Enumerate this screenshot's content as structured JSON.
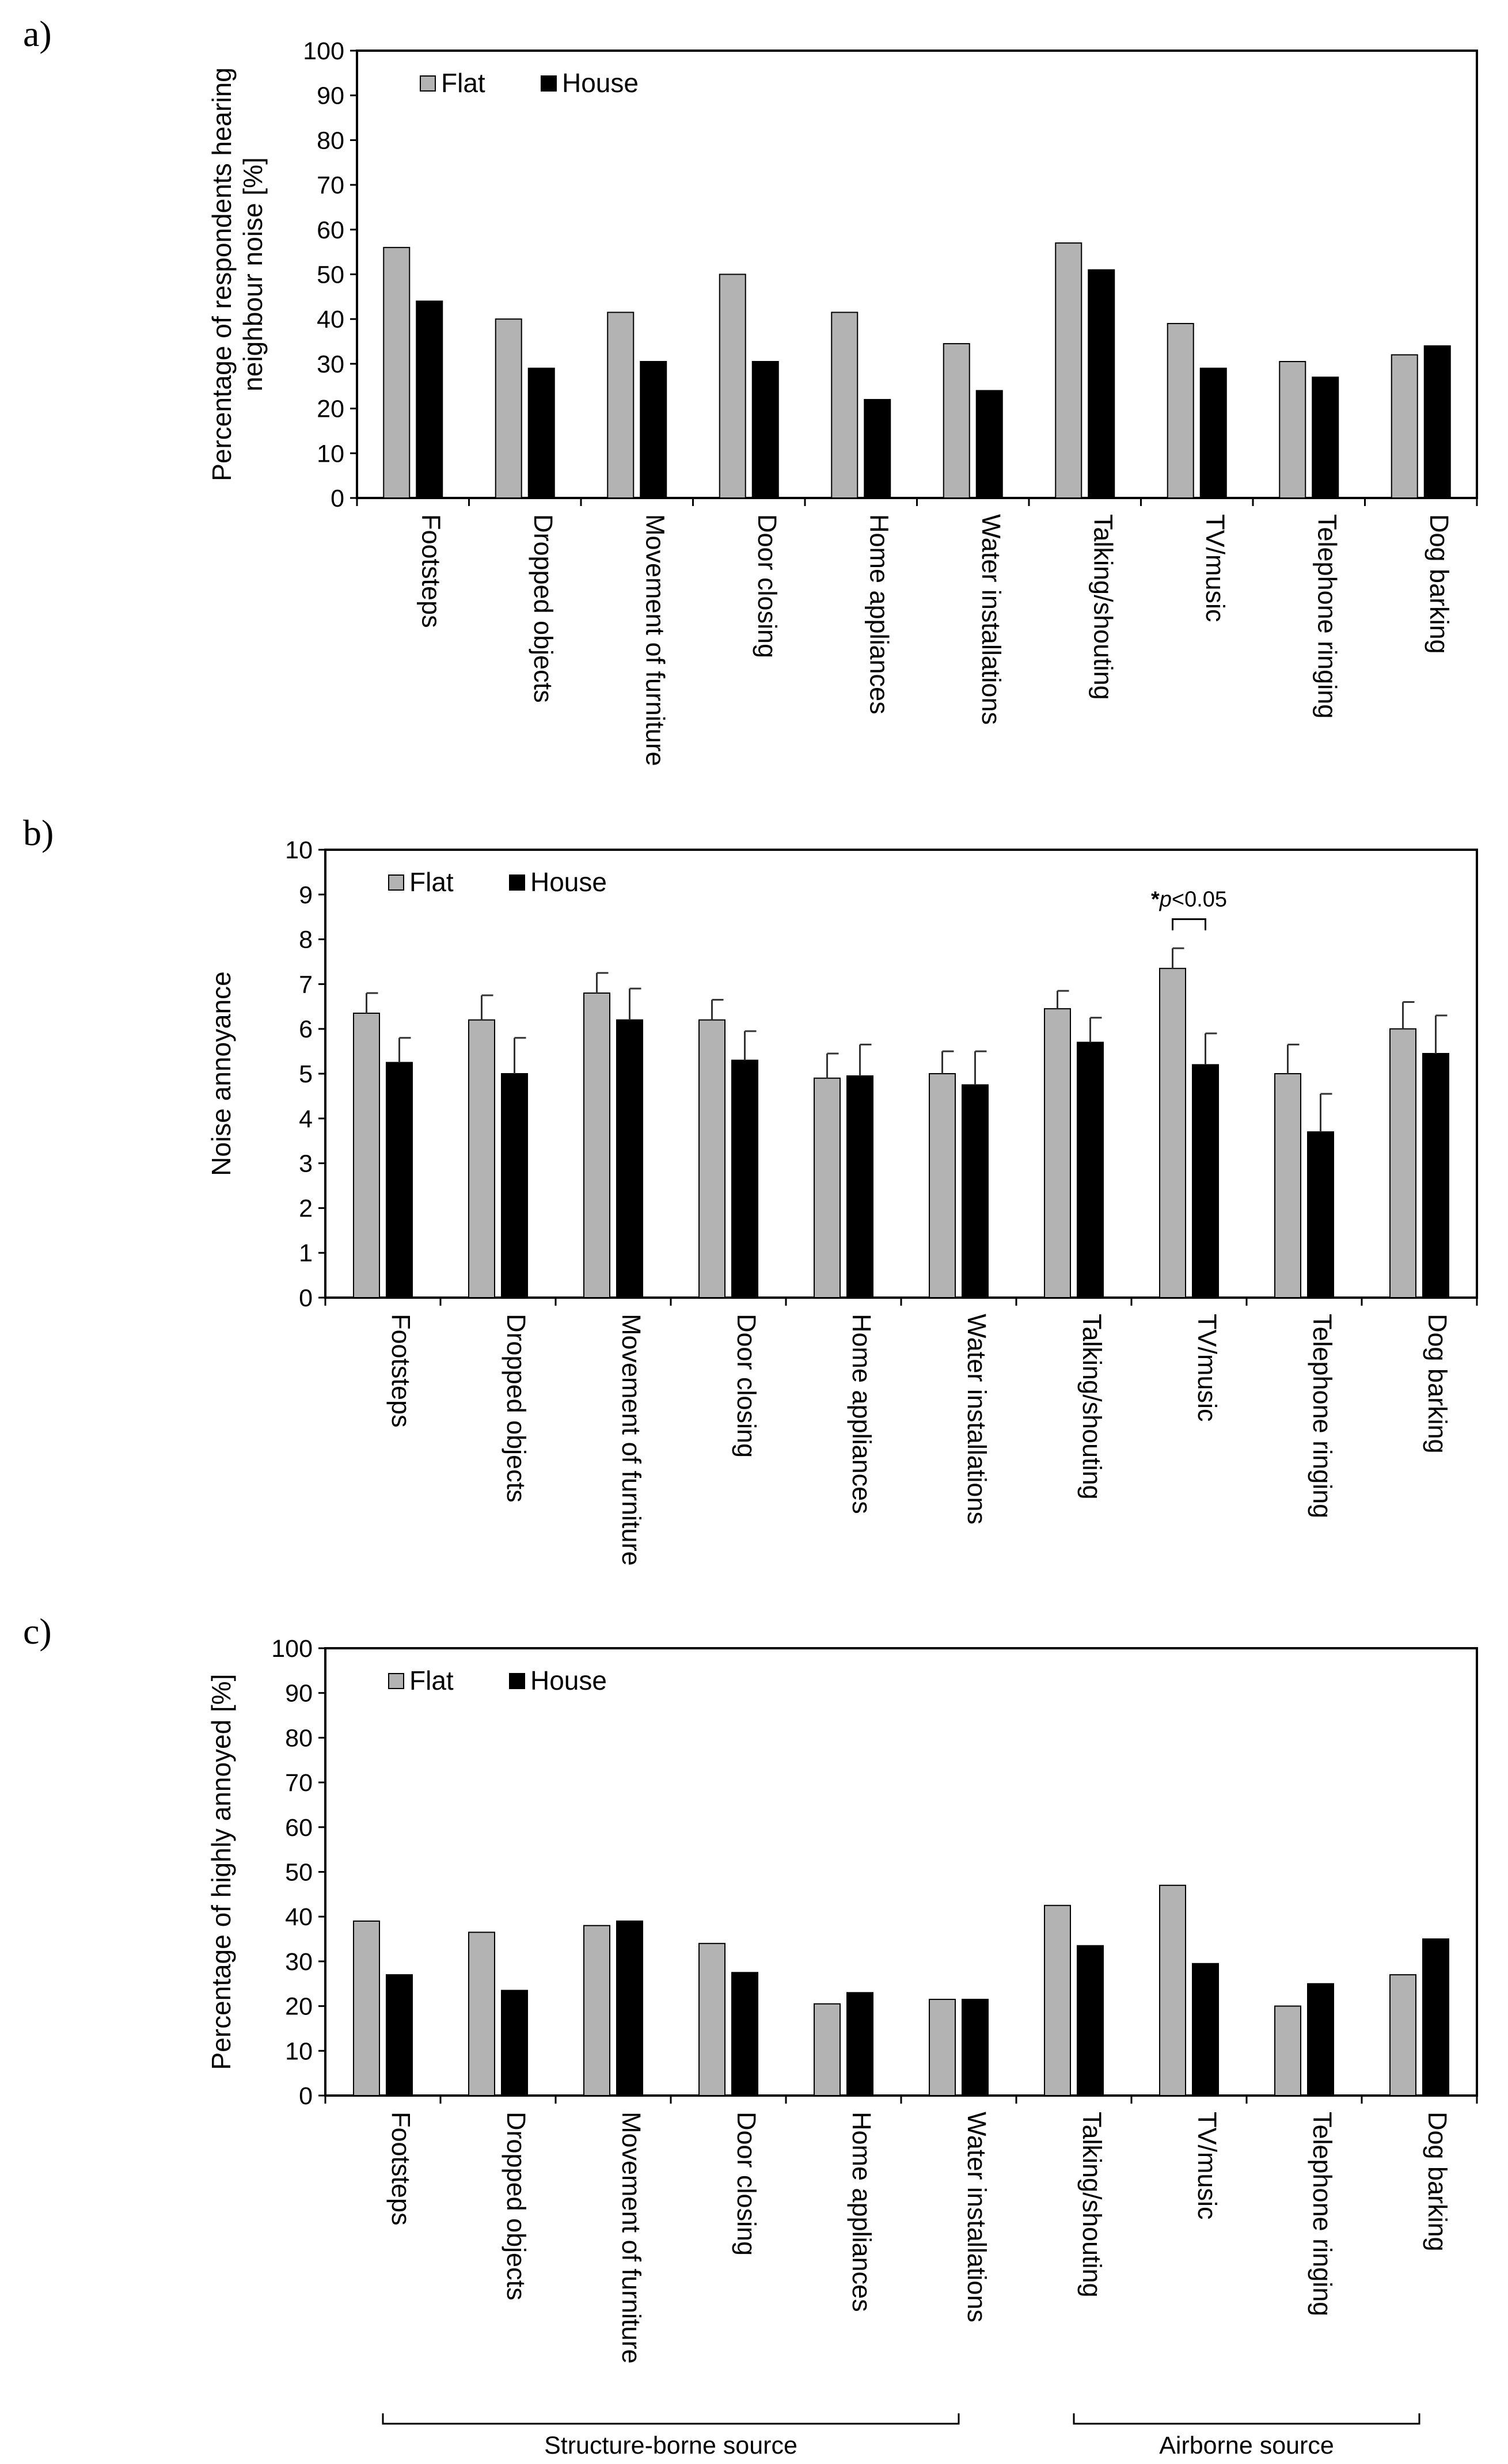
{
  "panels": [
    {
      "label": "a)",
      "ylabel_lines": [
        "Percentage of respondents hearing",
        "neighbour noise [%]"
      ],
      "chart_data": {
        "type": "bar",
        "categories": [
          "Footsteps",
          "Dropped objects",
          "Movement of furniture",
          "Door closing",
          "Home appliances",
          "Water installations",
          "Talking/shouting",
          "TV/music",
          "Telephone ringing",
          "Dog barking"
        ],
        "series": [
          {
            "name": "Flat",
            "color": "#b3b3b3",
            "values": [
              56,
              40,
              41.5,
              50,
              41.5,
              34.5,
              57,
              39,
              30.5,
              32
            ]
          },
          {
            "name": "House",
            "color": "#000000",
            "values": [
              44,
              29,
              30.5,
              30.5,
              22,
              24,
              51,
              29,
              27,
              34
            ]
          }
        ],
        "ylim": [
          0,
          100
        ],
        "yticks": [
          "0",
          "10",
          "20",
          "30",
          "40",
          "50",
          "60",
          "70",
          "80",
          "90",
          "100"
        ],
        "legend": "top-left",
        "grid": false
      }
    },
    {
      "label": "b)",
      "ylabel_lines": [
        "Noise annoyance"
      ],
      "chart_data": {
        "type": "bar",
        "categories": [
          "Footsteps",
          "Dropped objects",
          "Movement of furniture",
          "Door closing",
          "Home appliances",
          "Water installations",
          "Talking/shouting",
          "TV/music",
          "Telephone ringing",
          "Dog barking"
        ],
        "series": [
          {
            "name": "Flat",
            "color": "#b3b3b3",
            "values": [
              6.35,
              6.2,
              6.8,
              6.2,
              4.9,
              5.0,
              6.45,
              7.35,
              5.0,
              6.0
            ],
            "error": [
              0.45,
              0.55,
              0.45,
              0.45,
              0.55,
              0.5,
              0.4,
              0.45,
              0.65,
              0.6
            ]
          },
          {
            "name": "House",
            "color": "#000000",
            "values": [
              5.25,
              5.0,
              6.2,
              5.3,
              4.95,
              4.75,
              5.7,
              5.2,
              3.7,
              5.45
            ],
            "error": [
              0.55,
              0.8,
              0.7,
              0.65,
              0.7,
              0.75,
              0.55,
              0.7,
              0.85,
              0.85
            ]
          }
        ],
        "ylim": [
          0,
          10
        ],
        "yticks": [
          "0",
          "1",
          "2",
          "3",
          "4",
          "5",
          "6",
          "7",
          "8",
          "9",
          "10"
        ],
        "legend": "top-left",
        "grid": false,
        "annotation": {
          "category_index": 7,
          "star": "*",
          "p": "p",
          "rest": "<0.05"
        }
      }
    },
    {
      "label": "c)",
      "ylabel_lines": [
        "Percentage of highly annoyed [%]"
      ],
      "chart_data": {
        "type": "bar",
        "categories": [
          "Footsteps",
          "Dropped objects",
          "Movement of furniture",
          "Door closing",
          "Home appliances",
          "Water installations",
          "Talking/shouting",
          "TV/music",
          "Telephone ringing",
          "Dog barking"
        ],
        "series": [
          {
            "name": "Flat",
            "color": "#b3b3b3",
            "values": [
              39,
              36.5,
              38,
              34,
              20.5,
              21.5,
              42.5,
              47,
              20,
              27
            ]
          },
          {
            "name": "House",
            "color": "#000000",
            "values": [
              27,
              23.5,
              39,
              27.5,
              23,
              21.5,
              33.5,
              29.5,
              25,
              35
            ]
          }
        ],
        "ylim": [
          0,
          100
        ],
        "yticks": [
          "0",
          "10",
          "20",
          "30",
          "40",
          "50",
          "60",
          "70",
          "80",
          "90",
          "100"
        ],
        "legend": "top-left",
        "grid": false,
        "groups": [
          {
            "label": "Structure-borne source",
            "from": 0,
            "to": 5
          },
          {
            "label": "Airborne source",
            "from": 6,
            "to": 9
          }
        ]
      }
    }
  ]
}
